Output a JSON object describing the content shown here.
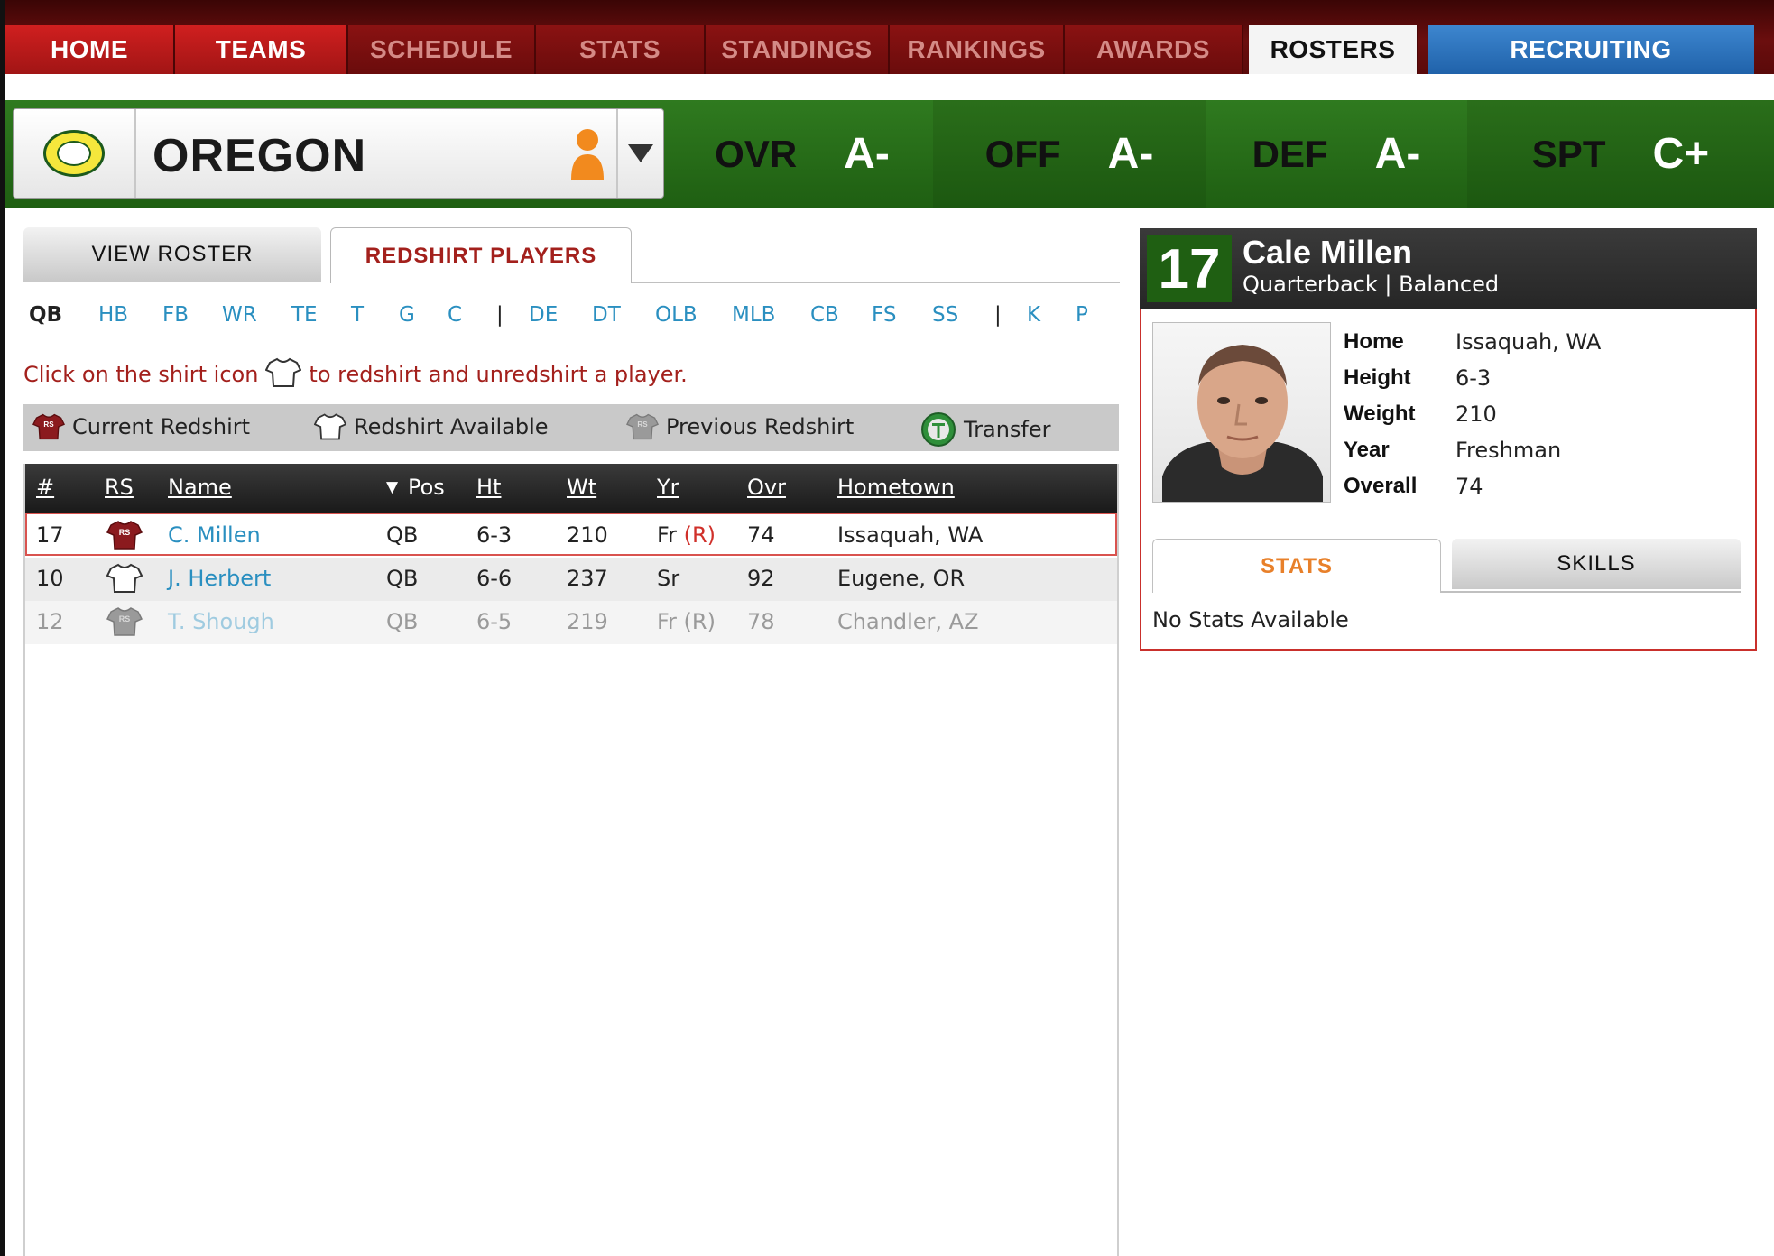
{
  "nav": {
    "items": [
      {
        "label": "HOME"
      },
      {
        "label": "TEAMS"
      },
      {
        "label": "SCHEDULE"
      },
      {
        "label": "STATS"
      },
      {
        "label": "STANDINGS"
      },
      {
        "label": "RANKINGS"
      },
      {
        "label": "AWARDS"
      },
      {
        "label": "ROSTERS"
      },
      {
        "label": "RECRUITING"
      }
    ],
    "active": "ROSTERS"
  },
  "team": {
    "name": "OREGON",
    "logo_icon": "oregon-o-logo",
    "ratings": [
      {
        "label": "OVR",
        "value": "A-"
      },
      {
        "label": "OFF",
        "value": "A-"
      },
      {
        "label": "DEF",
        "value": "A-"
      },
      {
        "label": "SPT",
        "value": "C+"
      }
    ]
  },
  "tabs": {
    "view_roster": "VIEW ROSTER",
    "redshirt_players": "REDSHIRT PLAYERS"
  },
  "positions": {
    "offense": [
      "QB",
      "HB",
      "FB",
      "WR",
      "TE",
      "T",
      "G",
      "C"
    ],
    "defense": [
      "DE",
      "DT",
      "OLB",
      "MLB",
      "CB",
      "FS",
      "SS"
    ],
    "special": [
      "K",
      "P"
    ],
    "separator": "|",
    "selected": "QB"
  },
  "instruction": {
    "before": "Click on the shirt icon",
    "after": "to redshirt and unredshirt a player."
  },
  "legend": {
    "current": "Current Redshirt",
    "available": "Redshirt Available",
    "previous": "Previous Redshirt",
    "transfer": "Transfer",
    "shirt_badge": "RS"
  },
  "table": {
    "headers": {
      "num": "#",
      "rs": "RS",
      "name": "Name",
      "sort_arrow": "▼",
      "pos": "Pos",
      "ht": "Ht",
      "wt": "Wt",
      "yr": "Yr",
      "ovr": "Ovr",
      "hometown": "Hometown"
    },
    "rows": [
      {
        "num": "17",
        "rs": "current-redshirt-icon",
        "name": "C. Millen",
        "pos": "QB",
        "ht": "6-3",
        "wt": "210",
        "yr": "Fr",
        "yr_tag": "(R)",
        "ovr": "74",
        "hometown": "Issaquah, WA"
      },
      {
        "num": "10",
        "rs": "redshirt-available-icon",
        "name": "J. Herbert",
        "pos": "QB",
        "ht": "6-6",
        "wt": "237",
        "yr": "Sr",
        "yr_tag": "",
        "ovr": "92",
        "hometown": "Eugene, OR"
      },
      {
        "num": "12",
        "rs": "previous-redshirt-icon",
        "name": "T. Shough",
        "pos": "QB",
        "ht": "6-5",
        "wt": "219",
        "yr": "Fr (R)",
        "yr_tag": "",
        "ovr": "78",
        "hometown": "Chandler, AZ"
      }
    ]
  },
  "player": {
    "number": "17",
    "name": "Cale Millen",
    "position": "Quarterback",
    "divider": "|",
    "archetype": "Balanced",
    "details": [
      {
        "key": "Home",
        "value": "Issaquah, WA"
      },
      {
        "key": "Height",
        "value": "6-3"
      },
      {
        "key": "Weight",
        "value": "210"
      },
      {
        "key": "Year",
        "value": "Freshman"
      },
      {
        "key": "Overall",
        "value": "74"
      }
    ],
    "tabs": {
      "stats": "STATS",
      "skills": "SKILLS"
    },
    "no_stats": "No Stats Available"
  },
  "colors": {
    "nav_red": "#a11515",
    "banner_green": "#1f5f12",
    "accent_red": "#a3201c",
    "link_blue": "#2a8fc0",
    "recruit_blue": "#2062aa",
    "stats_orange": "#e8802a"
  }
}
